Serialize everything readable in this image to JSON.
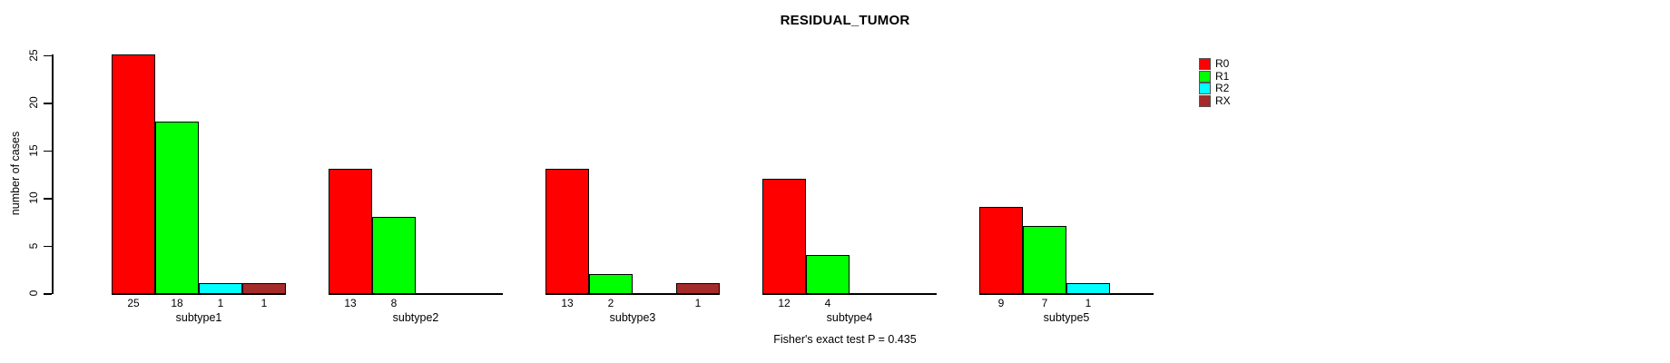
{
  "title": "RESIDUAL_TUMOR",
  "footer": "Fisher's exact test P = 0.435",
  "ylabel": "number of cases",
  "legend": [
    {
      "label": "R0",
      "color": "#FF0000"
    },
    {
      "label": "R1",
      "color": "#00FF00"
    },
    {
      "label": "R2",
      "color": "#00FFFF"
    },
    {
      "label": "RX",
      "color": "#A52A2A"
    }
  ],
  "chart_data": {
    "type": "bar",
    "title": "RESIDUAL_TUMOR",
    "xlabel": "",
    "ylabel": "number of cases",
    "ylim": [
      0,
      25
    ],
    "yticks": [
      0,
      5,
      10,
      15,
      20,
      25
    ],
    "grid": false,
    "legend_position": "top-right",
    "bar_value_labels": true,
    "annotation": "Fisher's exact test P = 0.435",
    "categories": [
      "subtype1",
      "subtype2",
      "subtype3",
      "subtype4",
      "subtype5"
    ],
    "series": [
      {
        "name": "R0",
        "color": "#FF0000",
        "values": [
          25,
          13,
          13,
          12,
          9
        ]
      },
      {
        "name": "R1",
        "color": "#00FF00",
        "values": [
          18,
          8,
          2,
          4,
          7
        ]
      },
      {
        "name": "R2",
        "color": "#00FFFF",
        "values": [
          1,
          0,
          0,
          0,
          1
        ]
      },
      {
        "name": "RX",
        "color": "#A52A2A",
        "values": [
          1,
          0,
          1,
          0,
          0
        ]
      }
    ]
  }
}
